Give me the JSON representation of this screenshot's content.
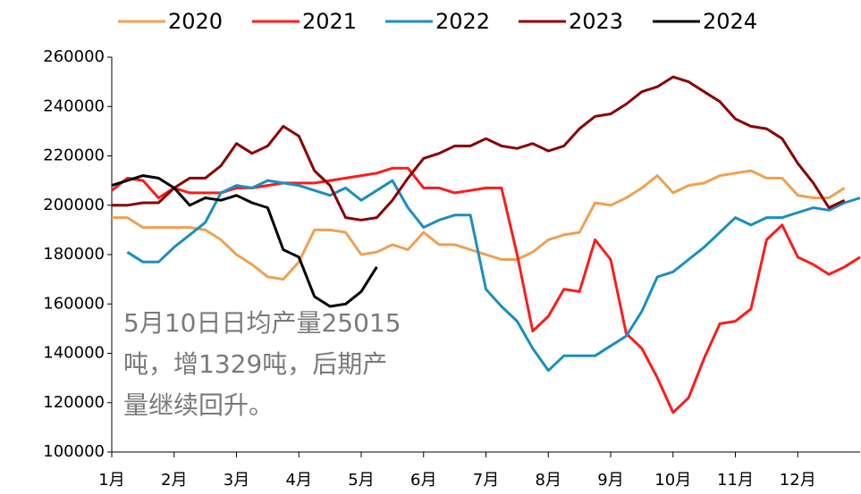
{
  "chart_data": {
    "type": "line",
    "x": [
      1,
      1.25,
      1.5,
      1.75,
      2,
      2.25,
      2.5,
      2.75,
      3,
      3.25,
      3.5,
      3.75,
      4,
      4.25,
      4.5,
      4.75,
      5,
      5.25,
      5.5,
      5.75,
      6,
      6.25,
      6.5,
      6.75,
      7,
      7.25,
      7.5,
      7.75,
      8,
      8.25,
      8.5,
      8.75,
      9,
      9.25,
      9.5,
      9.75,
      10,
      10.25,
      10.5,
      10.75,
      11,
      11.25,
      11.5,
      11.75,
      12,
      12.25,
      12.5,
      12.75,
      13
    ],
    "series": [
      {
        "name": "2020",
        "color": "#f0a050",
        "values": [
          195000,
          195000,
          191000,
          191000,
          191000,
          191000,
          190000,
          186000,
          180000,
          176000,
          171000,
          170000,
          177000,
          190000,
          190000,
          189000,
          180000,
          181000,
          184000,
          182000,
          189000,
          184000,
          184000,
          182000,
          180000,
          178000,
          178000,
          181000,
          186000,
          188000,
          189000,
          201000,
          200000,
          203000,
          207000,
          212000,
          205000,
          208000,
          209000,
          212000,
          213000,
          214000,
          211000,
          211000,
          204000,
          203000,
          203000,
          207000,
          null
        ]
      },
      {
        "name": "2021",
        "color": "#ff1a1a",
        "values": [
          206000,
          211000,
          210000,
          203000,
          207000,
          205000,
          205000,
          205000,
          207000,
          207000,
          208000,
          209000,
          209000,
          209000,
          210000,
          211000,
          212000,
          213000,
          215000,
          215000,
          207000,
          207000,
          205000,
          206000,
          207000,
          207000,
          180000,
          149000,
          155000,
          166000,
          165000,
          186000,
          178000,
          148000,
          142000,
          130000,
          116000,
          122000,
          138000,
          152000,
          153000,
          158000,
          186000,
          192000,
          179000,
          176000,
          172000,
          175000,
          179000
        ]
      },
      {
        "name": "2022",
        "color": "#1a8fbf",
        "values": [
          null,
          181000,
          177000,
          177000,
          183000,
          188000,
          193000,
          205000,
          208000,
          207000,
          210000,
          209000,
          208000,
          206000,
          204000,
          207000,
          202000,
          206000,
          210000,
          199000,
          191000,
          194000,
          196000,
          196000,
          166000,
          159000,
          153000,
          142000,
          133000,
          139000,
          139000,
          139000,
          143000,
          147000,
          157000,
          171000,
          173000,
          178000,
          183000,
          189000,
          195000,
          192000,
          195000,
          195000,
          197000,
          199000,
          198000,
          201000,
          203000
        ]
      },
      {
        "name": "2023",
        "color": "#8b0000",
        "values": [
          200000,
          200000,
          201000,
          201000,
          207000,
          211000,
          211000,
          216000,
          225000,
          221000,
          224000,
          232000,
          228000,
          214000,
          208000,
          195000,
          194000,
          195000,
          202000,
          211000,
          219000,
          221000,
          224000,
          224000,
          227000,
          224000,
          223000,
          225000,
          222000,
          224000,
          231000,
          236000,
          237000,
          241000,
          246000,
          248000,
          252000,
          250000,
          246000,
          242000,
          235000,
          232000,
          231000,
          227000,
          217000,
          209000,
          199000,
          202000,
          null
        ]
      },
      {
        "name": "2024",
        "color": "#000000",
        "values": [
          208000,
          210000,
          212000,
          211000,
          207000,
          200000,
          203000,
          202000,
          204000,
          201000,
          199000,
          182000,
          179000,
          163000,
          159000,
          160000,
          165000,
          175000,
          null,
          null,
          null,
          null,
          null,
          null,
          null,
          null,
          null,
          null,
          null,
          null,
          null,
          null,
          null,
          null,
          null,
          null,
          null,
          null,
          null,
          null,
          null,
          null,
          null,
          null,
          null,
          null,
          null,
          null,
          null
        ]
      }
    ],
    "xlim": [
      1,
      13
    ],
    "xticks": [
      {
        "value": 1,
        "label": "1月"
      },
      {
        "value": 2,
        "label": "2月"
      },
      {
        "value": 3,
        "label": "3月"
      },
      {
        "value": 4,
        "label": "4月"
      },
      {
        "value": 5,
        "label": "5月"
      },
      {
        "value": 6,
        "label": "6月"
      },
      {
        "value": 7,
        "label": "7月"
      },
      {
        "value": 8,
        "label": "8月"
      },
      {
        "value": 9,
        "label": "9月"
      },
      {
        "value": 10,
        "label": "10月"
      },
      {
        "value": 11,
        "label": "11月"
      },
      {
        "value": 12,
        "label": "12月"
      }
    ],
    "ylim": [
      100000,
      260000
    ],
    "yticks": [
      100000,
      120000,
      140000,
      160000,
      180000,
      200000,
      220000,
      240000,
      260000
    ],
    "legend": "top",
    "annotation": [
      "5月10日日均产量25015",
      "吨，增1329吨，后期产",
      "量继续回升。"
    ]
  }
}
